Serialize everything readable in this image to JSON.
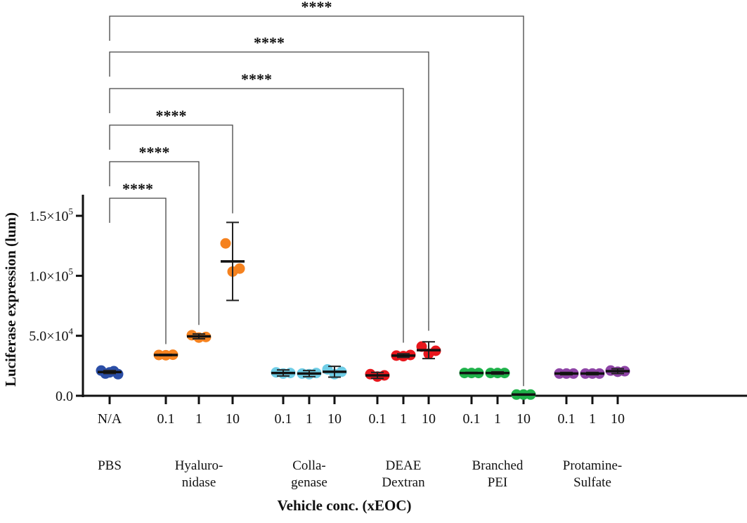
{
  "chart_data": {
    "type": "scatter",
    "title": "",
    "xlabel": "Vehicle conc. (xEOC)",
    "ylabel": "Luciferase expression (lum)",
    "ylim": [
      0,
      150000
    ],
    "yticks": [
      {
        "value": 0,
        "label": "0.0"
      },
      {
        "value": 50000,
        "label": "5.0×10",
        "exp": "4"
      },
      {
        "value": 100000,
        "label": "1.0×10",
        "exp": "5"
      },
      {
        "value": 150000,
        "label": "1.5×10",
        "exp": "5"
      }
    ],
    "grid": false,
    "groups": [
      {
        "name": "PBS",
        "color": "#2b4ea6",
        "conditions": [
          {
            "conc": "N/A",
            "points": [
              21000,
              18500,
              19500,
              20500,
              18000
            ],
            "mean": 19800,
            "err": [
              18500,
              21000
            ]
          }
        ]
      },
      {
        "name": "Hyaluro-\nnidase",
        "color": "#f5821f",
        "conditions": [
          {
            "conc": "0.1",
            "points": [
              34000,
              33800,
              34200
            ],
            "mean": 34000,
            "err": [
              33500,
              34500
            ]
          },
          {
            "conc": "1",
            "points": [
              50500,
              48500,
              49000
            ],
            "mean": 49500,
            "err": [
              47500,
              51500
            ]
          },
          {
            "conc": "10",
            "points": [
              127000,
              103500,
              106000
            ],
            "mean": 112000,
            "err": [
              79500,
              144500
            ]
          }
        ]
      },
      {
        "name": "Colla-\ngenase",
        "color": "#6fcde6",
        "conditions": [
          {
            "conc": "0.1",
            "points": [
              19500,
              18500,
              19000
            ],
            "mean": 19000,
            "err": [
              16500,
              21500
            ]
          },
          {
            "conc": "1",
            "points": [
              18500,
              18000,
              19000
            ],
            "mean": 18500,
            "err": [
              16000,
              21000
            ]
          },
          {
            "conc": "10",
            "points": [
              22000,
              18000,
              20000
            ],
            "mean": 20000,
            "err": [
              15500,
              24500
            ]
          }
        ]
      },
      {
        "name": "DEAE\nDextran",
        "color": "#e8161c",
        "conditions": [
          {
            "conc": "0.1",
            "points": [
              18000,
              16000,
              17000
            ],
            "mean": 17000,
            "err": [
              14500,
              19500
            ]
          },
          {
            "conc": "1",
            "points": [
              33500,
              33000,
              34000
            ],
            "mean": 33500,
            "err": [
              32000,
              35000
            ]
          },
          {
            "conc": "10",
            "points": [
              41000,
              35000,
              37500
            ],
            "mean": 38000,
            "err": [
              31000,
              45000
            ]
          }
        ]
      },
      {
        "name": "Branched\nPEI",
        "color": "#1fb24a",
        "conditions": [
          {
            "conc": "0.1",
            "points": [
              19000,
              19000,
              19000
            ],
            "mean": 19000,
            "err": [
              18500,
              19500
            ]
          },
          {
            "conc": "1",
            "points": [
              19000,
              19000,
              19000
            ],
            "mean": 19000,
            "err": [
              18000,
              20000
            ]
          },
          {
            "conc": "10",
            "points": [
              1000,
              1000,
              1000
            ],
            "mean": 1000,
            "err": [
              500,
              1500
            ]
          }
        ]
      },
      {
        "name": "Protamine-\nSulfate",
        "color": "#8e44a6",
        "conditions": [
          {
            "conc": "0.1",
            "points": [
              18500,
              18500,
              18500
            ],
            "mean": 18500,
            "err": [
              17500,
              19500
            ]
          },
          {
            "conc": "1",
            "points": [
              18500,
              18500,
              18500
            ],
            "mean": 18500,
            "err": [
              17500,
              19500
            ]
          },
          {
            "conc": "10",
            "points": [
              21000,
              20000,
              20500
            ],
            "mean": 20500,
            "err": [
              18500,
              22500
            ]
          }
        ]
      }
    ],
    "comparisons": [
      {
        "from": "PBS N/A",
        "to": "Hyaluronidase 0.1",
        "label": "****"
      },
      {
        "from": "PBS N/A",
        "to": "Hyaluronidase 1",
        "label": "****"
      },
      {
        "from": "PBS N/A",
        "to": "Hyaluronidase 10",
        "label": "****"
      },
      {
        "from": "PBS N/A",
        "to": "DEAE Dextran 1",
        "label": "****"
      },
      {
        "from": "PBS N/A",
        "to": "DEAE Dextran 10",
        "label": "****"
      },
      {
        "from": "PBS N/A",
        "to": "Branched PEI 10",
        "label": "****"
      }
    ]
  }
}
